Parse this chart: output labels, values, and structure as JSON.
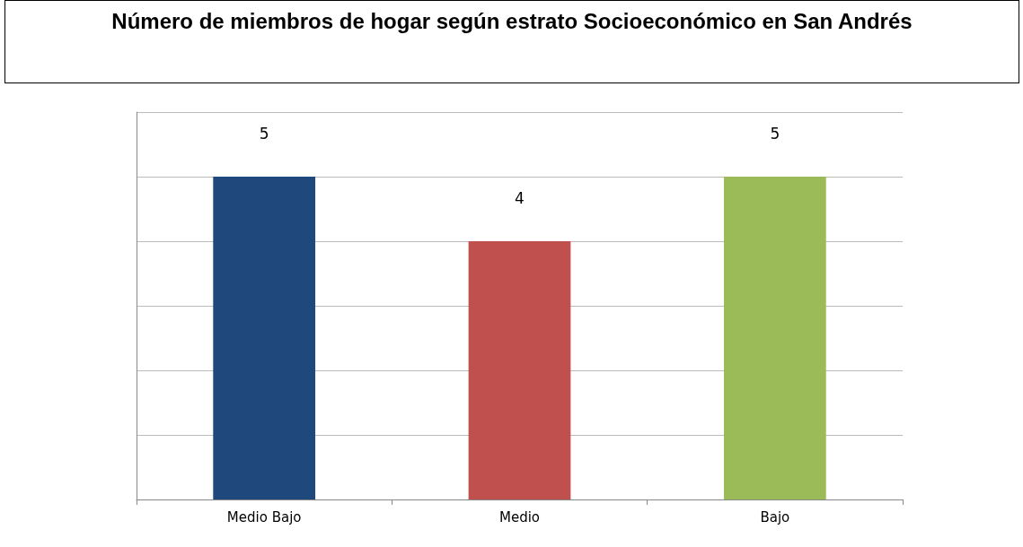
{
  "chart_data": {
    "type": "bar",
    "title": "Número de miembros de hogar según estrato Socioeconómico en San Andrés",
    "categories": [
      "Medio Bajo",
      "Medio",
      "Bajo"
    ],
    "values": [
      5,
      4,
      5
    ],
    "colors": [
      "#1f497d",
      "#c0504d",
      "#9bbb59"
    ],
    "ylim": [
      0,
      6
    ],
    "yticks": [
      {
        "value": 0,
        "label": null
      },
      {
        "value": 1,
        "label": null
      },
      {
        "value": 2,
        "label": null
      },
      {
        "value": 3,
        "label": null
      },
      {
        "value": 4,
        "label": null
      },
      {
        "value": 5,
        "label": null
      },
      {
        "value": 6,
        "label": null
      }
    ],
    "tick_labels": "x",
    "grid": "y",
    "data_labels": true
  }
}
